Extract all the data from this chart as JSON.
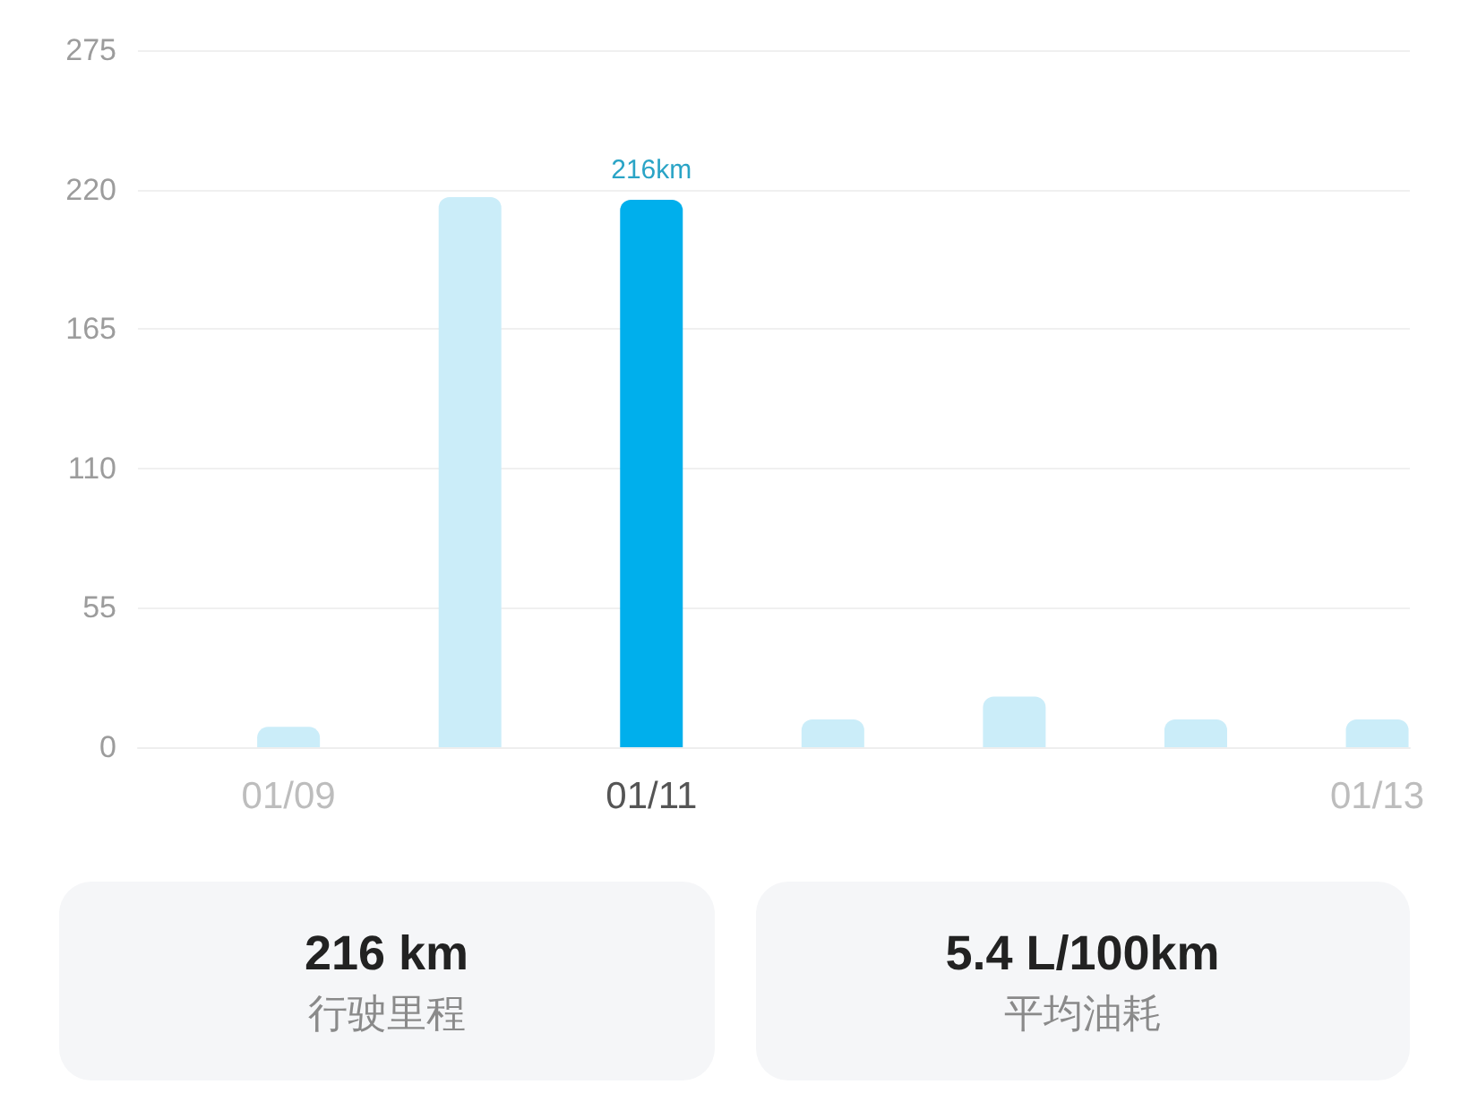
{
  "chart_data": [
    {
      "type": "bar",
      "categories": [
        "01/09",
        null,
        "01/11",
        null,
        null,
        null,
        "01/13"
      ],
      "values": [
        8,
        217,
        216,
        11,
        20,
        11,
        11
      ],
      "colors": [
        "#cbedf9",
        "#cbedf9",
        "#00afec",
        "#cbedf9",
        "#cbedf9",
        "#cbedf9",
        "#cbedf9"
      ],
      "value_labels": [
        null,
        null,
        "216km",
        null,
        null,
        null,
        null
      ],
      "ylim": [
        0,
        275
      ],
      "yticks": [
        0,
        55,
        110,
        165,
        220,
        275
      ],
      "grid": "y"
    },
    {
      "type": "other",
      "title": "216 km",
      "subtitle": "行驶里程"
    },
    {
      "type": "other",
      "title": "5.4 L/100km",
      "subtitle": "平均油耗"
    }
  ]
}
